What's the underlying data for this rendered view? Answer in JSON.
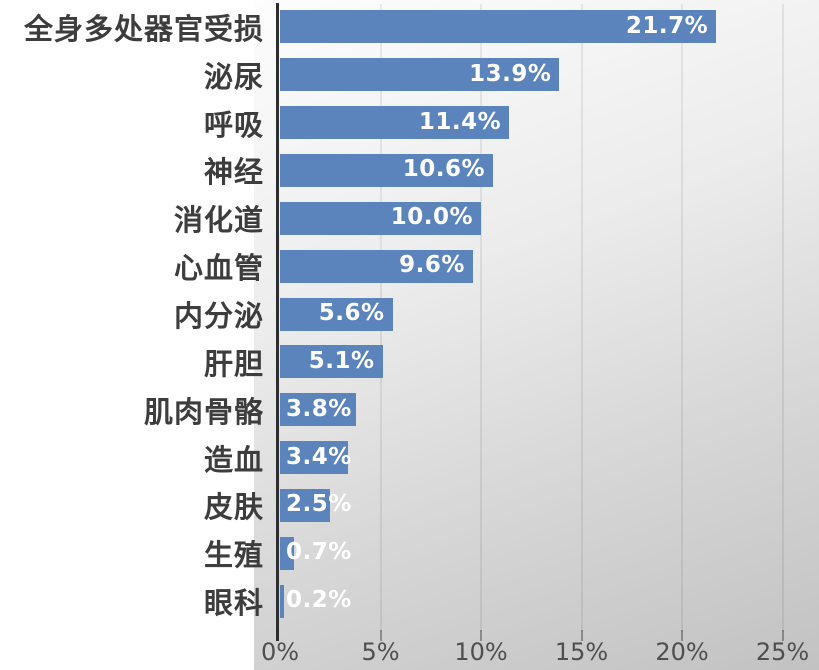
{
  "chart_data": {
    "type": "bar",
    "orientation": "horizontal",
    "title": "",
    "xlabel": "",
    "ylabel": "",
    "categories": [
      "全身多处器官受损",
      "泌尿",
      "呼吸",
      "神经",
      "消化道",
      "心血管",
      "内分泌",
      "肝胆",
      "肌肉骨骼",
      "造血",
      "皮肤",
      "生殖",
      "眼科"
    ],
    "values": [
      21.7,
      13.9,
      11.4,
      10.6,
      10.0,
      9.6,
      5.6,
      5.1,
      3.8,
      3.4,
      2.5,
      0.7,
      0.2
    ],
    "value_labels": [
      "21.7%",
      "13.9%",
      "11.4%",
      "10.6%",
      "10.0%",
      "9.6%",
      "5.6%",
      "5.1%",
      "3.8%",
      "3.4%",
      "2.5%",
      "0.7%",
      "0.2%"
    ],
    "x_ticks": [
      0,
      5,
      10,
      15,
      20,
      25
    ],
    "x_tick_labels": [
      "0%",
      "5%",
      "10%",
      "15%",
      "20%",
      "25%"
    ],
    "xlim": [
      0,
      26.5
    ],
    "grid": "vertical",
    "legend": "none",
    "colors": {
      "bar": "#5b83bc",
      "bar_value_text": "#ffffff",
      "category_text": "#3d3d3d",
      "tick_text": "#4f4f4f",
      "axis_line": "#2e2e2e",
      "panel_gradient_top": "#fdfdfd",
      "panel_gradient_bottom": "#c2c2c2"
    }
  }
}
